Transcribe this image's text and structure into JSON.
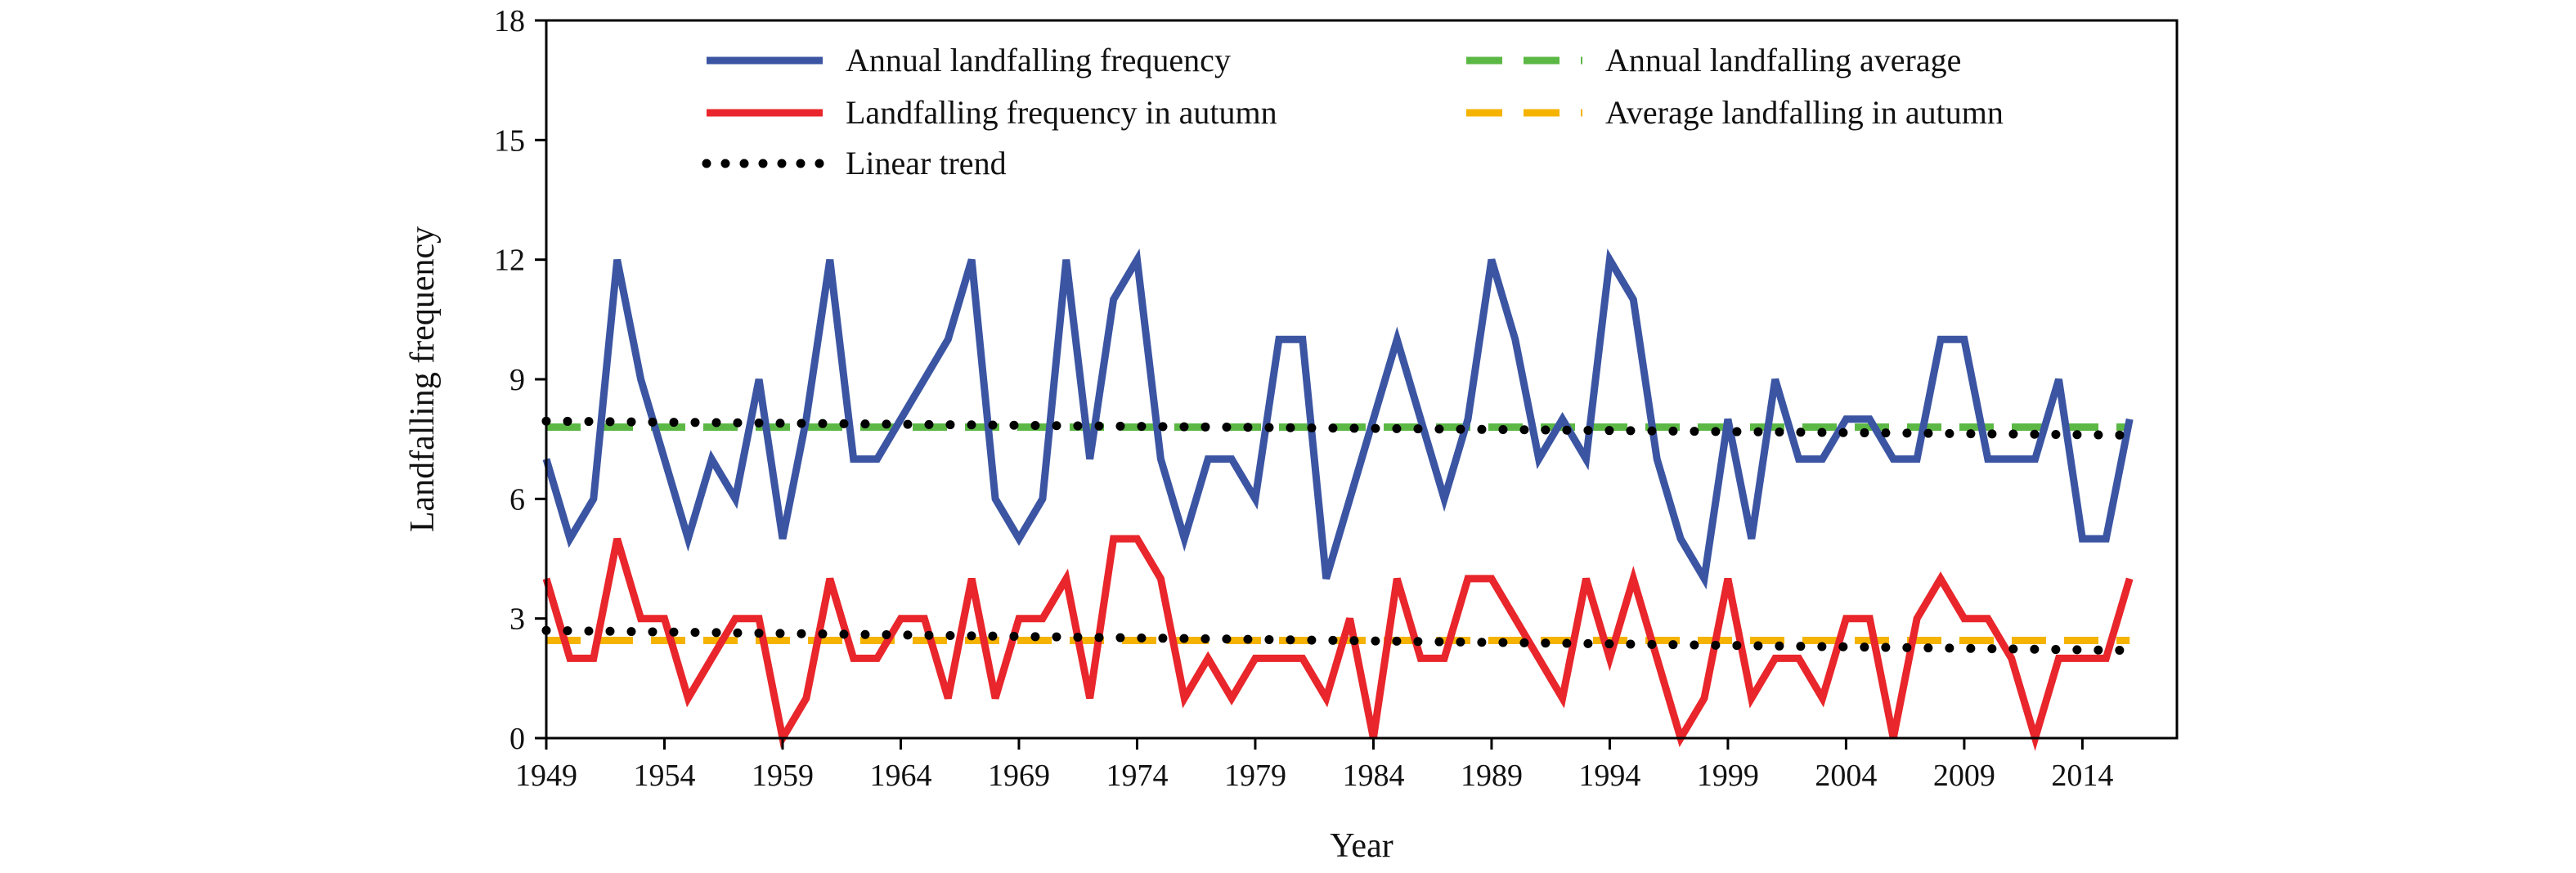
{
  "chart_data": {
    "type": "line",
    "xlabel": "Year",
    "ylabel": "Landfalling frequency",
    "xlim": [
      1949,
      2018
    ],
    "ylim": [
      0,
      18
    ],
    "x_ticks": [
      1949,
      1954,
      1959,
      1964,
      1969,
      1974,
      1979,
      1984,
      1989,
      1994,
      1999,
      2004,
      2009,
      2014
    ],
    "y_ticks": [
      0,
      3,
      6,
      9,
      12,
      15,
      18
    ],
    "grid": false,
    "legend_position": "top",
    "series": [
      {
        "name": "Annual landfalling frequency",
        "color": "#3b55a3",
        "style": "solid",
        "x": [
          1949,
          1950,
          1951,
          1952,
          1953,
          1954,
          1955,
          1956,
          1957,
          1958,
          1959,
          1960,
          1961,
          1962,
          1963,
          1964,
          1965,
          1966,
          1967,
          1968,
          1969,
          1970,
          1971,
          1972,
          1973,
          1974,
          1975,
          1976,
          1977,
          1978,
          1979,
          1980,
          1981,
          1982,
          1983,
          1984,
          1985,
          1986,
          1987,
          1988,
          1989,
          1990,
          1991,
          1992,
          1993,
          1994,
          1995,
          1996,
          1997,
          1998,
          1999,
          2000,
          2001,
          2002,
          2003,
          2004,
          2005,
          2006,
          2007,
          2008,
          2009,
          2010,
          2011,
          2012,
          2013,
          2014,
          2015,
          2016
        ],
        "values": [
          7,
          5,
          6,
          12,
          9,
          7,
          5,
          7,
          6,
          9,
          5,
          8,
          12,
          7,
          7,
          8,
          9,
          10,
          12,
          6,
          5,
          6,
          12,
          7,
          11,
          12,
          7,
          5,
          7,
          7,
          6,
          10,
          10,
          4,
          6,
          8,
          10,
          8,
          6,
          8,
          12,
          10,
          7,
          8,
          7,
          12,
          11,
          7,
          5,
          4,
          8,
          5,
          9,
          7,
          7,
          8,
          8,
          7,
          7,
          10,
          10,
          7,
          7,
          7,
          9,
          5,
          5,
          8
        ]
      },
      {
        "name": "Landfalling frequency in autumn",
        "color": "#e8262b",
        "style": "solid",
        "x": [
          1949,
          1950,
          1951,
          1952,
          1953,
          1954,
          1955,
          1956,
          1957,
          1958,
          1959,
          1960,
          1961,
          1962,
          1963,
          1964,
          1965,
          1966,
          1967,
          1968,
          1969,
          1970,
          1971,
          1972,
          1973,
          1974,
          1975,
          1976,
          1977,
          1978,
          1979,
          1980,
          1981,
          1982,
          1983,
          1984,
          1985,
          1986,
          1987,
          1988,
          1989,
          1990,
          1991,
          1992,
          1993,
          1994,
          1995,
          1996,
          1997,
          1998,
          1999,
          2000,
          2001,
          2002,
          2003,
          2004,
          2005,
          2006,
          2007,
          2008,
          2009,
          2010,
          2011,
          2012,
          2013,
          2014,
          2015,
          2016
        ],
        "values": [
          4,
          2,
          2,
          5,
          3,
          3,
          1,
          2,
          3,
          3,
          0,
          1,
          4,
          2,
          2,
          3,
          3,
          1,
          4,
          1,
          3,
          3,
          4,
          1,
          5,
          5,
          4,
          1,
          2,
          1,
          2,
          2,
          2,
          1,
          3,
          0,
          4,
          2,
          2,
          4,
          4,
          3,
          2,
          1,
          4,
          2,
          4,
          2,
          0,
          1,
          4,
          1,
          2,
          2,
          1,
          3,
          3,
          0,
          3,
          4,
          3,
          3,
          2,
          0,
          2,
          2,
          2,
          4
        ]
      },
      {
        "name": "Annual landfalling average",
        "color": "#5cb845",
        "style": "dashed",
        "x": [
          1949,
          2016
        ],
        "values": [
          7.8,
          7.8
        ]
      },
      {
        "name": "Average landfalling in autumn",
        "color": "#f5b300",
        "style": "dashed",
        "x": [
          1949,
          2016
        ],
        "values": [
          2.45,
          2.45
        ]
      },
      {
        "name": "Linear trend",
        "color": "#000000",
        "style": "dotted",
        "x": [
          1949,
          2016
        ],
        "values": [
          7.95,
          7.6
        ]
      },
      {
        "name": "Linear trend",
        "color": "#000000",
        "style": "dotted",
        "x": [
          1949,
          2016
        ],
        "values": [
          2.7,
          2.2
        ]
      }
    ],
    "legend": [
      {
        "label": "Annual landfalling frequency",
        "color": "#3b55a3",
        "style": "solid"
      },
      {
        "label": "Annual landfalling average",
        "color": "#5cb845",
        "style": "dashed"
      },
      {
        "label": "Landfalling frequency in autumn",
        "color": "#e8262b",
        "style": "solid"
      },
      {
        "label": "Average landfalling in autumn",
        "color": "#f5b300",
        "style": "dashed"
      },
      {
        "label": "Linear trend",
        "color": "#000000",
        "style": "dotted"
      }
    ]
  }
}
